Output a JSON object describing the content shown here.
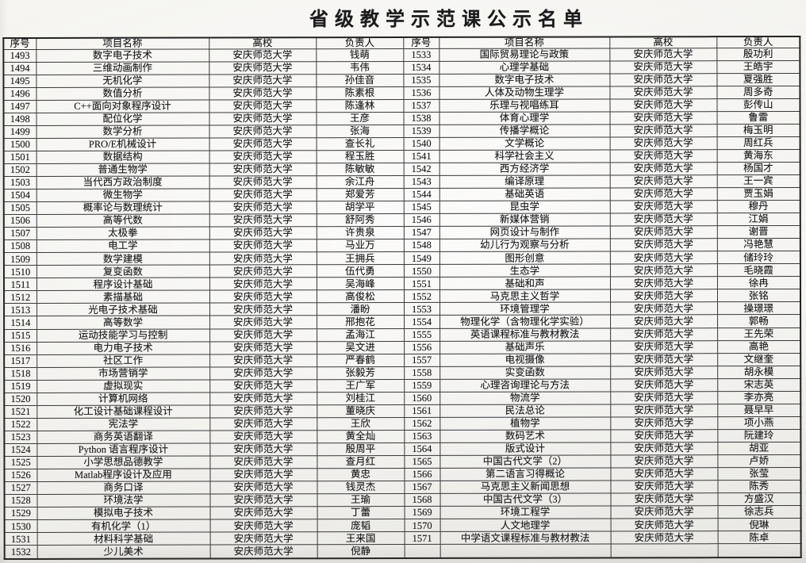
{
  "page": {
    "title": "省级教学示范课公示名单"
  },
  "colors": {
    "paper": "#f4f3f0",
    "ink": "#1b1b1d",
    "border": "#39393b"
  },
  "table": {
    "columns": [
      "序号",
      "项目名称",
      "高校",
      "负责人"
    ],
    "left_rows": [
      [
        "1493",
        "数字电子技术",
        "安庆师范大学",
        "钱萌"
      ],
      [
        "1494",
        "三维动画制作",
        "安庆师范大学",
        "韦伟"
      ],
      [
        "1495",
        "无机化学",
        "安庆师范大学",
        "孙佳音"
      ],
      [
        "1496",
        "数值分析",
        "安庆师范大学",
        "陈素根"
      ],
      [
        "1497",
        "C++面向对象程序设计",
        "安庆师范大学",
        "陈逢林"
      ],
      [
        "1498",
        "配位化学",
        "安庆师范大学",
        "王彦"
      ],
      [
        "1499",
        "数学分析",
        "安庆师范大学",
        "张海"
      ],
      [
        "1500",
        "PRO/E机械设计",
        "安庆师范大学",
        "查长礼"
      ],
      [
        "1501",
        "数据结构",
        "安庆师范大学",
        "程玉胜"
      ],
      [
        "1502",
        "普通生物学",
        "安庆师范大学",
        "陈敏敏"
      ],
      [
        "1503",
        "当代西方政治制度",
        "安庆师范大学",
        "余江舟"
      ],
      [
        "1504",
        "微生物学",
        "安庆师范大学",
        "郑爱芳"
      ],
      [
        "1505",
        "概率论与数理统计",
        "安庆师范大学",
        "胡学平"
      ],
      [
        "1506",
        "高等代数",
        "安庆师范大学",
        "舒阿秀"
      ],
      [
        "1507",
        "太极拳",
        "安庆师范大学",
        "许贵泉"
      ],
      [
        "1508",
        "电工学",
        "安庆师范大学",
        "马业万"
      ],
      [
        "1509",
        "数学建模",
        "安庆师范大学",
        "王拥兵"
      ],
      [
        "1510",
        "复变函数",
        "安庆师范大学",
        "伍代勇"
      ],
      [
        "1511",
        "程序设计基础",
        "安庆师范大学",
        "吴海峰"
      ],
      [
        "1512",
        "素描基础",
        "安庆师范大学",
        "高俊松"
      ],
      [
        "1513",
        "光电子技术基础",
        "安庆师范大学",
        "潘盼"
      ],
      [
        "1514",
        "高等数学",
        "安庆师范大学",
        "邢抱花"
      ],
      [
        "1515",
        "运动技能学习与控制",
        "安庆师范大学",
        "孟海江"
      ],
      [
        "1516",
        "电力电子技术",
        "安庆师范大学",
        "吴文进"
      ],
      [
        "1517",
        "社区工作",
        "安庆师范大学",
        "严春鹤"
      ],
      [
        "1518",
        "市场营销学",
        "安庆师范大学",
        "张毅芳"
      ],
      [
        "1519",
        "虚拟现实",
        "安庆师范大学",
        "王广军"
      ],
      [
        "1520",
        "计算机网络",
        "安庆师范大学",
        "刘桂江"
      ],
      [
        "1521",
        "化工设计基础课程设计",
        "安庆师范大学",
        "董晓庆"
      ],
      [
        "1522",
        "宪法学",
        "安庆师范大学",
        "王欣"
      ],
      [
        "1523",
        "商务英语翻译",
        "安庆师范大学",
        "黄全灿"
      ],
      [
        "1524",
        "Python 语言程序设计",
        "安庆师范大学",
        "殷周平"
      ],
      [
        "1525",
        "小学思想品德教学",
        "安庆师范大学",
        "查月红"
      ],
      [
        "1526",
        "Matlab程序设计及应用",
        "安庆师范大学",
        "黄忠"
      ],
      [
        "1527",
        "商务口译",
        "安庆师范大学",
        "钱灵杰"
      ],
      [
        "1528",
        "环境法学",
        "安庆师范大学",
        "王瑜"
      ],
      [
        "1529",
        "模拟电子技术",
        "安庆师范大学",
        "丁蕾"
      ],
      [
        "1530",
        "有机化学（1）",
        "安庆师范大学",
        "庞韬"
      ],
      [
        "1531",
        "材料科学基础",
        "安庆师范大学",
        "王来国"
      ],
      [
        "1532",
        "少儿美术",
        "安庆师范大学",
        "倪静"
      ]
    ],
    "right_rows": [
      [
        "1533",
        "国际贸易理论与政策",
        "安庆师范大学",
        "殷功利"
      ],
      [
        "1534",
        "心理学基础",
        "安庆师范大学",
        "王皓宇"
      ],
      [
        "1535",
        "数字电子技术",
        "安庆师范大学",
        "夏强胜"
      ],
      [
        "1536",
        "人体及动物生理学",
        "安庆师范大学",
        "周多奇"
      ],
      [
        "1537",
        "乐理与视唱练耳",
        "安庆师范大学",
        "彭传山"
      ],
      [
        "1538",
        "体育心理学",
        "安庆师范大学",
        "鲁雷"
      ],
      [
        "1539",
        "传播学概论",
        "安庆师范大学",
        "梅玉明"
      ],
      [
        "1540",
        "文学概论",
        "安庆师范大学",
        "周红兵"
      ],
      [
        "1541",
        "科学社会主义",
        "安庆师范大学",
        "黄海东"
      ],
      [
        "1542",
        "西方经济学",
        "安庆师范大学",
        "杨国才"
      ],
      [
        "1543",
        "编译原理",
        "安庆师范大学",
        "王一宾"
      ],
      [
        "1544",
        "基础英语",
        "安庆师范大学",
        "贾玉娟"
      ],
      [
        "1545",
        "昆虫学",
        "安庆师范大学",
        "穆丹"
      ],
      [
        "1546",
        "新媒体营销",
        "安庆师范大学",
        "江娟"
      ],
      [
        "1547",
        "网页设计与制作",
        "安庆师范大学",
        "谢晋"
      ],
      [
        "1548",
        "幼儿行为观察与分析",
        "安庆师范大学",
        "冯艳慧"
      ],
      [
        "1549",
        "图形创意",
        "安庆师范大学",
        "储玲玲"
      ],
      [
        "1550",
        "生态学",
        "安庆师范大学",
        "毛晓霞"
      ],
      [
        "1551",
        "基础和声",
        "安庆师范大学",
        "徐冉"
      ],
      [
        "1552",
        "马克思主义哲学",
        "安庆师范大学",
        "张铭"
      ],
      [
        "1553",
        "环境管理学",
        "安庆师范大学",
        "操璟璟"
      ],
      [
        "1554",
        "物理化学（含物理化学实验）",
        "安庆师范大学",
        "郭畅"
      ],
      [
        "1555",
        "英语课程标准与教材教法",
        "安庆师范大学",
        "王先荣"
      ],
      [
        "1556",
        "基础声乐",
        "安庆师范大学",
        "高艳"
      ],
      [
        "1557",
        "电视摄像",
        "安庆师范大学",
        "文继奎"
      ],
      [
        "1558",
        "实变函数",
        "安庆师范大学",
        "胡永模"
      ],
      [
        "1559",
        "心理咨询理论与方法",
        "安庆师范大学",
        "宋志英"
      ],
      [
        "1560",
        "物流学",
        "安庆师范大学",
        "李亦亮"
      ],
      [
        "1561",
        "民法总论",
        "安庆师范大学",
        "聂早早"
      ],
      [
        "1562",
        "植物学",
        "安庆师范大学",
        "项小燕"
      ],
      [
        "1563",
        "数码艺术",
        "安庆师范大学",
        "阮建玲"
      ],
      [
        "1564",
        "版式设计",
        "安庆师范大学",
        "胡亚"
      ],
      [
        "1565",
        "中国古代文学（2）",
        "安庆师范大学",
        "卢娇"
      ],
      [
        "1566",
        "第二语言习得概论",
        "安庆师范大学",
        "张莹"
      ],
      [
        "1567",
        "马克思主义新闻思想",
        "安庆师范大学",
        "陈秀"
      ],
      [
        "1568",
        "中国古代文学（3）",
        "安庆师范大学",
        "方盛汉"
      ],
      [
        "1569",
        "环境工程学",
        "安庆师范大学",
        "徐志兵"
      ],
      [
        "1570",
        "人文地理学",
        "安庆师范大学",
        "倪琳"
      ],
      [
        "1571",
        "中学语文课程标准与教材教法",
        "安庆师范大学",
        "陈卓"
      ],
      [
        "",
        "",
        "",
        ""
      ]
    ]
  }
}
